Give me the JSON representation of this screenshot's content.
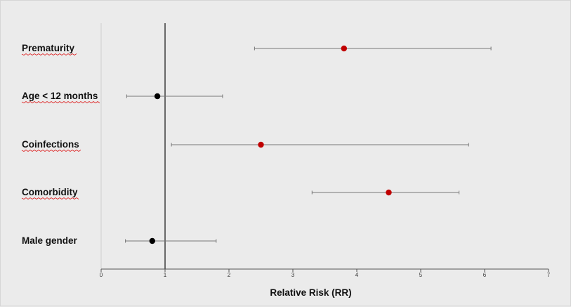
{
  "chart_data": {
    "type": "scatter",
    "subtype": "forest-plot",
    "title": "",
    "xlabel": "Relative Risk (RR)",
    "ylabel": "",
    "xlim": [
      0,
      7
    ],
    "x_ticks": [
      "0",
      "1",
      "2",
      "3",
      "4",
      "5",
      "6",
      "7"
    ],
    "reference_line": 1,
    "grid": false,
    "rows": [
      {
        "label": "Prematurity",
        "estimate": 3.8,
        "ci_low": 2.4,
        "ci_high": 6.1,
        "color": "#c00000",
        "label_spellcheck_underline": true
      },
      {
        "label": "Age < 12 months",
        "estimate": 0.88,
        "ci_low": 0.4,
        "ci_high": 1.9,
        "color": "#000000",
        "label_spellcheck_underline": true
      },
      {
        "label": "Coinfections",
        "estimate": 2.5,
        "ci_low": 1.1,
        "ci_high": 5.75,
        "color": "#c00000",
        "label_spellcheck_underline": true
      },
      {
        "label": "Comorbidity",
        "estimate": 4.5,
        "ci_low": 3.3,
        "ci_high": 5.6,
        "color": "#c00000",
        "label_spellcheck_underline": true
      },
      {
        "label": "Male gender",
        "estimate": 0.8,
        "ci_low": 0.38,
        "ci_high": 1.8,
        "color": "#000000",
        "label_spellcheck_underline": false
      }
    ]
  }
}
